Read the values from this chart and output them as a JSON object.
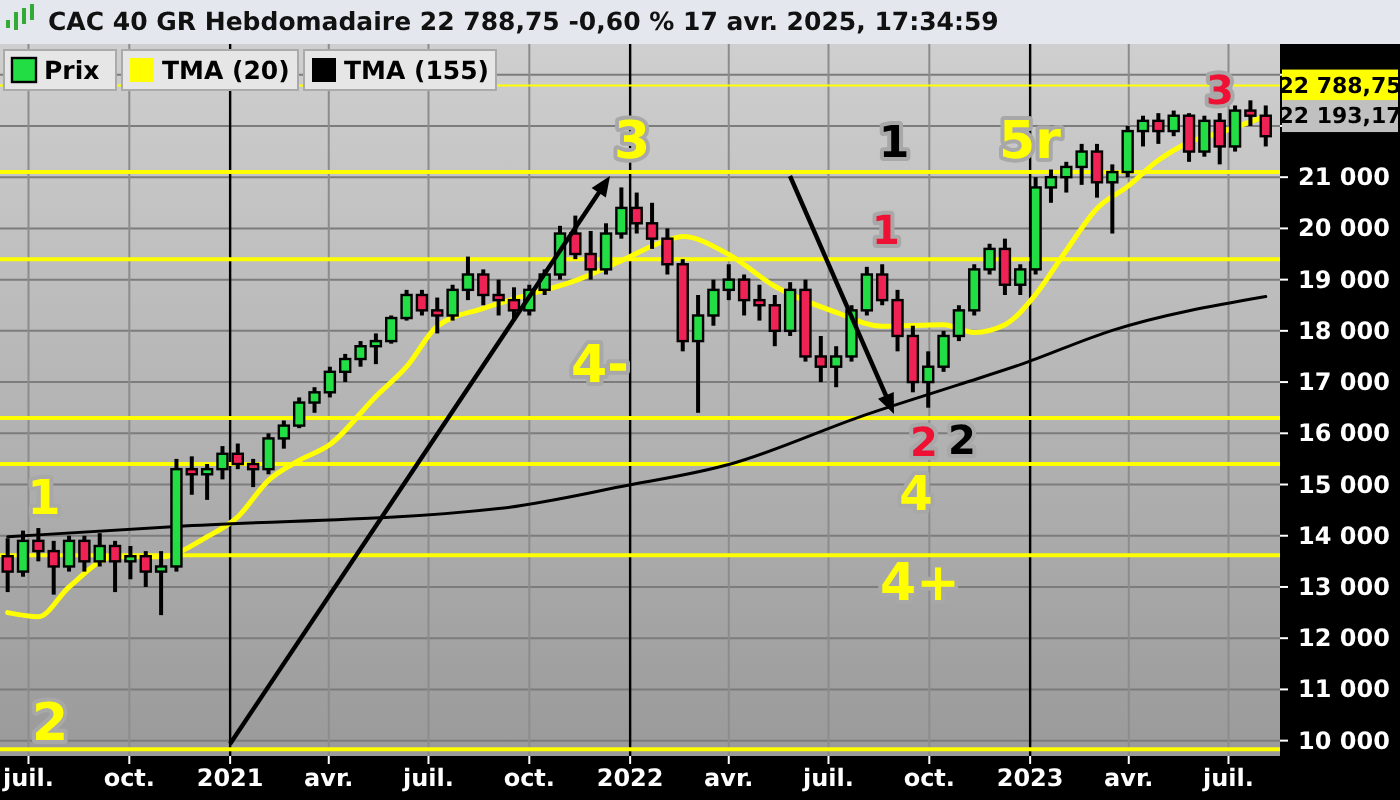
{
  "chart_data": {
    "type": "candlestick",
    "title": "CAC 40 GR Hebdomadaire 22 788,75 -0,60 % 17 avr. 2025, 17:34:59",
    "xlim": [
      "2020-06-05",
      "2023-08-17"
    ],
    "xticks": [
      {
        "value": "2020-07-01",
        "label": "juil."
      },
      {
        "value": "2020-10-01",
        "label": "oct."
      },
      {
        "value": "2021-01-01",
        "label": "2021"
      },
      {
        "value": "2021-04-01",
        "label": "avr."
      },
      {
        "value": "2021-07-01",
        "label": "juil."
      },
      {
        "value": "2021-10-01",
        "label": "oct."
      },
      {
        "value": "2022-01-01",
        "label": "2022"
      },
      {
        "value": "2022-04-01",
        "label": "avr."
      },
      {
        "value": "2022-07-01",
        "label": "juil."
      },
      {
        "value": "2022-10-01",
        "label": "oct."
      },
      {
        "value": "2023-01-01",
        "label": "2023"
      },
      {
        "value": "2023-04-01",
        "label": "avr."
      },
      {
        "value": "2023-07-01",
        "label": "juil."
      }
    ],
    "ylim": [
      9700,
      23600
    ],
    "yticks": [
      {
        "value": 10000,
        "label": "10 000"
      },
      {
        "value": 11000,
        "label": "11 000"
      },
      {
        "value": 12000,
        "label": "12 000"
      },
      {
        "value": 13000,
        "label": "13 000"
      },
      {
        "value": 14000,
        "label": "14 000"
      },
      {
        "value": 15000,
        "label": "15 000"
      },
      {
        "value": 16000,
        "label": "16 000"
      },
      {
        "value": 17000,
        "label": "17 000"
      },
      {
        "value": 18000,
        "label": "18 000"
      },
      {
        "value": 19000,
        "label": "19 000"
      },
      {
        "value": 20000,
        "label": "20 000"
      },
      {
        "value": 21000,
        "label": "21 000"
      },
      {
        "value": 22000,
        "label": null
      },
      {
        "value": 23000,
        "label": null
      }
    ],
    "grid": true,
    "legend": "top left",
    "series": [
      {
        "name": "Prix",
        "color": "#22dd44",
        "x": [
          "2020-06-12",
          "2020-06-26",
          "2020-07-10",
          "2020-07-24",
          "2020-08-07",
          "2020-08-21",
          "2020-09-04",
          "2020-09-18",
          "2020-10-02",
          "2020-10-16",
          "2020-10-30",
          "2020-11-13",
          "2020-11-27",
          "2020-12-11",
          "2020-12-25",
          "2021-01-08",
          "2021-01-22",
          "2021-02-05",
          "2021-02-19",
          "2021-03-05",
          "2021-03-19",
          "2021-04-02",
          "2021-04-16",
          "2021-04-30",
          "2021-05-14",
          "2021-05-28",
          "2021-06-11",
          "2021-06-25",
          "2021-07-09",
          "2021-07-23",
          "2021-08-06",
          "2021-08-20",
          "2021-09-03",
          "2021-09-17",
          "2021-10-01",
          "2021-10-15",
          "2021-10-29",
          "2021-11-12",
          "2021-11-26",
          "2021-12-10",
          "2021-12-24",
          "2022-01-07",
          "2022-01-21",
          "2022-02-04",
          "2022-02-18",
          "2022-03-04",
          "2022-03-18",
          "2022-04-01",
          "2022-04-15",
          "2022-04-29",
          "2022-05-13",
          "2022-05-27",
          "2022-06-10",
          "2022-06-24",
          "2022-07-08",
          "2022-07-22",
          "2022-08-05",
          "2022-08-19",
          "2022-09-02",
          "2022-09-16",
          "2022-09-30",
          "2022-10-14",
          "2022-10-28",
          "2022-11-11",
          "2022-11-25",
          "2022-12-09",
          "2022-12-23",
          "2023-01-06",
          "2023-01-20",
          "2023-02-03",
          "2023-02-17",
          "2023-03-03",
          "2023-03-17",
          "2023-03-31",
          "2023-04-14",
          "2023-04-28",
          "2023-05-12",
          "2023-05-26",
          "2023-06-09",
          "2023-06-23",
          "2023-07-07",
          "2023-07-21",
          "2023-08-04"
        ],
        "ohlc": [
          [
            13600,
            13950,
            12900,
            13300
          ],
          [
            13300,
            14100,
            13200,
            13900
          ],
          [
            13900,
            14150,
            13500,
            13700
          ],
          [
            13700,
            13900,
            12850,
            13400
          ],
          [
            13400,
            14000,
            13300,
            13900
          ],
          [
            13900,
            14000,
            13300,
            13500
          ],
          [
            13500,
            14050,
            13400,
            13800
          ],
          [
            13800,
            13900,
            12900,
            13500
          ],
          [
            13500,
            13800,
            13150,
            13600
          ],
          [
            13600,
            13700,
            13000,
            13300
          ],
          [
            13300,
            13700,
            12450,
            13400
          ],
          [
            13400,
            15500,
            13300,
            15300
          ],
          [
            15300,
            15550,
            14800,
            15200
          ],
          [
            15200,
            15400,
            14700,
            15300
          ],
          [
            15300,
            15750,
            15100,
            15600
          ],
          [
            15600,
            15800,
            15300,
            15400
          ],
          [
            15400,
            15500,
            14950,
            15300
          ],
          [
            15300,
            16000,
            15200,
            15900
          ],
          [
            15900,
            16250,
            15700,
            16150
          ],
          [
            16150,
            16700,
            16100,
            16600
          ],
          [
            16600,
            16900,
            16400,
            16800
          ],
          [
            16800,
            17300,
            16700,
            17200
          ],
          [
            17200,
            17550,
            17000,
            17450
          ],
          [
            17450,
            17800,
            17300,
            17700
          ],
          [
            17700,
            17950,
            17350,
            17800
          ],
          [
            17800,
            18300,
            17750,
            18250
          ],
          [
            18250,
            18800,
            18200,
            18700
          ],
          [
            18700,
            18800,
            18300,
            18400
          ],
          [
            18400,
            18650,
            17950,
            18300
          ],
          [
            18300,
            18900,
            18200,
            18800
          ],
          [
            18800,
            19450,
            18600,
            19100
          ],
          [
            19100,
            19200,
            18500,
            18700
          ],
          [
            18700,
            19000,
            18300,
            18600
          ],
          [
            18600,
            18850,
            18200,
            18400
          ],
          [
            18400,
            18900,
            18300,
            18800
          ],
          [
            18800,
            19200,
            18700,
            19100
          ],
          [
            19100,
            20050,
            19000,
            19900
          ],
          [
            19900,
            20250,
            19400,
            19500
          ],
          [
            19500,
            19950,
            19000,
            19200
          ],
          [
            19200,
            20100,
            19100,
            19900
          ],
          [
            19900,
            20800,
            19800,
            20400
          ],
          [
            20400,
            20700,
            19900,
            20100
          ],
          [
            20100,
            20500,
            19600,
            19800
          ],
          [
            19800,
            20000,
            19100,
            19300
          ],
          [
            19300,
            19400,
            17600,
            17800
          ],
          [
            17800,
            18700,
            16400,
            18300
          ],
          [
            18300,
            19000,
            18100,
            18800
          ],
          [
            18800,
            19300,
            18600,
            19000
          ],
          [
            19000,
            19100,
            18300,
            18600
          ],
          [
            18600,
            18900,
            18200,
            18500
          ],
          [
            18500,
            18700,
            17700,
            18000
          ],
          [
            18000,
            18950,
            17900,
            18800
          ],
          [
            18800,
            19000,
            17400,
            17500
          ],
          [
            17500,
            17900,
            17000,
            17300
          ],
          [
            17300,
            17700,
            16900,
            17500
          ],
          [
            17500,
            18500,
            17400,
            18400
          ],
          [
            18400,
            19250,
            18300,
            19100
          ],
          [
            19100,
            19300,
            18500,
            18600
          ],
          [
            18600,
            18800,
            17600,
            17900
          ],
          [
            17900,
            18100,
            16800,
            17000
          ],
          [
            17000,
            17600,
            16500,
            17300
          ],
          [
            17300,
            18000,
            17200,
            17900
          ],
          [
            17900,
            18500,
            17800,
            18400
          ],
          [
            18400,
            19300,
            18300,
            19200
          ],
          [
            19200,
            19700,
            19100,
            19600
          ],
          [
            19600,
            19800,
            18700,
            18900
          ],
          [
            18900,
            19300,
            18700,
            19200
          ],
          [
            19200,
            21000,
            19100,
            20800
          ],
          [
            20800,
            21150,
            20500,
            21000
          ],
          [
            21000,
            21300,
            20700,
            21200
          ],
          [
            21200,
            21650,
            20850,
            21500
          ],
          [
            21500,
            21650,
            20600,
            20900
          ],
          [
            20900,
            21250,
            19900,
            21100
          ],
          [
            21100,
            22000,
            21000,
            21900
          ],
          [
            21900,
            22200,
            21600,
            22100
          ],
          [
            22100,
            22250,
            21650,
            21900
          ],
          [
            21900,
            22300,
            21800,
            22200
          ],
          [
            22200,
            22250,
            21300,
            21500
          ],
          [
            21500,
            22200,
            21400,
            22100
          ],
          [
            22100,
            22250,
            21250,
            21600
          ],
          [
            21600,
            22400,
            21500,
            22300
          ],
          [
            22300,
            22500,
            22000,
            22200
          ],
          [
            22200,
            22400,
            21600,
            21800
          ]
        ],
        "colors": [
          "#ee2255",
          "#22dd44",
          "#ee2255",
          "#ee2255",
          "#22dd44",
          "#ee2255",
          "#22dd44",
          "#ee2255",
          "#22dd44",
          "#ee2255",
          "#22dd44",
          "#22dd44",
          "#ee2255",
          "#22dd44",
          "#22dd44",
          "#ee2255",
          "#ee2255",
          "#22dd44",
          "#22dd44",
          "#22dd44",
          "#22dd44",
          "#22dd44",
          "#22dd44",
          "#22dd44",
          "#22dd44",
          "#22dd44",
          "#22dd44",
          "#ee2255",
          "#ee2255",
          "#22dd44",
          "#22dd44",
          "#ee2255",
          "#ee2255",
          "#ee2255",
          "#22dd44",
          "#22dd44",
          "#22dd44",
          "#ee2255",
          "#ee2255",
          "#22dd44",
          "#22dd44",
          "#ee2255",
          "#ee2255",
          "#ee2255",
          "#ee2255",
          "#22dd44",
          "#22dd44",
          "#22dd44",
          "#ee2255",
          "#ee2255",
          "#ee2255",
          "#22dd44",
          "#ee2255",
          "#ee2255",
          "#22dd44",
          "#22dd44",
          "#22dd44",
          "#ee2255",
          "#ee2255",
          "#ee2255",
          "#22dd44",
          "#22dd44",
          "#22dd44",
          "#22dd44",
          "#22dd44",
          "#ee2255",
          "#22dd44",
          "#22dd44",
          "#22dd44",
          "#22dd44",
          "#22dd44",
          "#ee2255",
          "#22dd44",
          "#22dd44",
          "#22dd44",
          "#ee2255",
          "#22dd44",
          "#ee2255",
          "#22dd44",
          "#ee2255",
          "#22dd44",
          "#ee2255",
          "#ee2255"
        ]
      },
      {
        "type": "line",
        "name": "TMA (20)",
        "color": "#ffff00",
        "x": [
          "2020-06-12",
          "2020-07-10",
          "2020-08-07",
          "2020-09-18",
          "2020-10-30",
          "2020-12-11",
          "2021-01-08",
          "2021-02-05",
          "2021-03-05",
          "2021-04-02",
          "2021-05-14",
          "2021-06-11",
          "2021-07-09",
          "2021-08-20",
          "2021-10-01",
          "2021-11-12",
          "2021-12-24",
          "2022-02-04",
          "2022-02-18",
          "2022-04-01",
          "2022-05-13",
          "2022-07-08",
          "2022-08-19",
          "2022-10-14",
          "2022-11-11",
          "2022-12-09",
          "2023-01-06",
          "2023-02-03",
          "2023-03-03",
          "2023-03-31",
          "2023-04-28",
          "2023-05-26",
          "2023-06-23",
          "2023-08-04"
        ],
        "values": [
          12500,
          12420,
          13000,
          13590,
          13590,
          13980,
          14370,
          15080,
          15470,
          15780,
          16720,
          17300,
          18090,
          18440,
          18710,
          18980,
          19370,
          19770,
          19840,
          19490,
          18870,
          18360,
          18090,
          18120,
          17970,
          18120,
          18710,
          19570,
          20390,
          20820,
          21330,
          21680,
          21870,
          22193.17
        ],
        "value_labels": [
          null,
          null,
          null,
          null,
          null,
          null,
          null,
          null,
          null,
          null,
          null,
          null,
          null,
          null,
          null,
          null,
          null,
          null,
          null,
          null,
          null,
          null,
          null,
          null,
          null,
          null,
          null,
          null,
          null,
          null,
          null,
          null,
          null,
          "22 193,17"
        ]
      },
      {
        "type": "line",
        "name": "TMA (155)",
        "color": "#000000",
        "x": [
          "2020-06-12",
          "2020-11-13",
          "2021-09-03",
          "2021-12-24",
          "2022-04-01",
          "2022-08-05",
          "2022-10-28",
          "2022-12-23",
          "2023-03-17",
          "2023-08-04"
        ],
        "values": [
          13980,
          14180,
          14530,
          14960,
          15390,
          16370,
          16950,
          17340,
          18010,
          18670
        ]
      }
    ],
    "ref_lines": [
      {
        "axis": "y",
        "value": 22788.75,
        "label": "22 788,75",
        "color": "#ffff00"
      },
      {
        "axis": "y",
        "value": 21100,
        "color": "#ffff00"
      },
      {
        "axis": "y",
        "value": 19400,
        "color": "#ffff00"
      },
      {
        "axis": "y",
        "value": 16300,
        "color": "#ffff00"
      },
      {
        "axis": "y",
        "value": 15400,
        "color": "#ffff00"
      },
      {
        "axis": "y",
        "value": 13620,
        "color": "#ffff00"
      },
      {
        "axis": "y",
        "value": 9830,
        "color": "#ffff00"
      }
    ],
    "annotations": [
      "1",
      "2",
      "3",
      "4-",
      "4",
      "4+",
      "5r",
      "1",
      "1",
      {
        "text": "2",
        "x": "2022-08-26",
        "y": 16300
      },
      "2",
      "3"
    ]
  }
}
